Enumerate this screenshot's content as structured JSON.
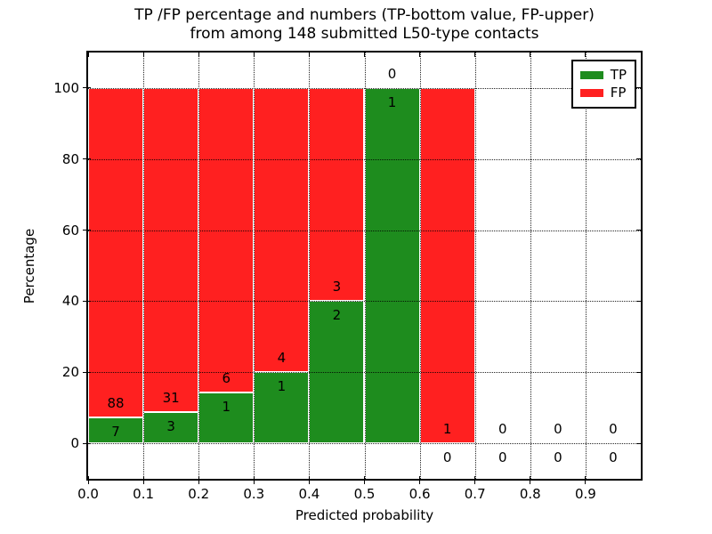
{
  "title": {
    "line1": "TP /FP percentage and numbers (TP-bottom value, FP-upper)",
    "line2": "from among 148 submitted L50-type contacts"
  },
  "axes": {
    "xlabel": "Predicted probability",
    "ylabel": "Percentage"
  },
  "legend": {
    "entries": [
      {
        "label": "TP",
        "color": "#1e8c1e"
      },
      {
        "label": "FP",
        "color": "#ff2020"
      }
    ]
  },
  "chart_data": {
    "type": "bar",
    "stacked": true,
    "percent_stacked": true,
    "title": "TP /FP percentage and numbers (TP-bottom value, FP-upper) from among 148 submitted L50-type contacts",
    "total_contacts": 148,
    "xlabel": "Predicted probability",
    "ylabel": "Percentage",
    "xlim": [
      0.0,
      1.0
    ],
    "ylim": [
      -10,
      110
    ],
    "grid": "dotted",
    "legend_position": "upper right",
    "x_ticks": [
      {
        "value": 0.0,
        "label": "0.0"
      },
      {
        "value": 0.1,
        "label": "0.1"
      },
      {
        "value": 0.2,
        "label": "0.2"
      },
      {
        "value": 0.3,
        "label": "0.3"
      },
      {
        "value": 0.4,
        "label": "0.4"
      },
      {
        "value": 0.5,
        "label": "0.5"
      },
      {
        "value": 0.6,
        "label": "0.6"
      },
      {
        "value": 0.7,
        "label": "0.7"
      },
      {
        "value": 0.8,
        "label": "0.8"
      },
      {
        "value": 0.9,
        "label": "0.9"
      }
    ],
    "y_ticks": [
      {
        "value": 0,
        "label": "0"
      },
      {
        "value": 20,
        "label": "20"
      },
      {
        "value": 40,
        "label": "40"
      },
      {
        "value": 60,
        "label": "60"
      },
      {
        "value": 80,
        "label": "80"
      },
      {
        "value": 100,
        "label": "100"
      }
    ],
    "bins": [
      {
        "x_start": 0.0,
        "x_end": 0.1,
        "tp": 7,
        "fp": 88,
        "tp_pct": 7.37,
        "fp_pct": 92.63
      },
      {
        "x_start": 0.1,
        "x_end": 0.2,
        "tp": 3,
        "fp": 31,
        "tp_pct": 8.82,
        "fp_pct": 91.18
      },
      {
        "x_start": 0.2,
        "x_end": 0.3,
        "tp": 1,
        "fp": 6,
        "tp_pct": 14.29,
        "fp_pct": 85.71
      },
      {
        "x_start": 0.3,
        "x_end": 0.4,
        "tp": 1,
        "fp": 4,
        "tp_pct": 20.0,
        "fp_pct": 80.0
      },
      {
        "x_start": 0.4,
        "x_end": 0.5,
        "tp": 2,
        "fp": 3,
        "tp_pct": 40.0,
        "fp_pct": 60.0
      },
      {
        "x_start": 0.5,
        "x_end": 0.6,
        "tp": 1,
        "fp": 0,
        "tp_pct": 100.0,
        "fp_pct": 0.0
      },
      {
        "x_start": 0.6,
        "x_end": 0.7,
        "tp": 0,
        "fp": 1,
        "tp_pct": 0.0,
        "fp_pct": 100.0
      },
      {
        "x_start": 0.7,
        "x_end": 0.8,
        "tp": 0,
        "fp": 0,
        "tp_pct": 0.0,
        "fp_pct": 0.0
      },
      {
        "x_start": 0.8,
        "x_end": 0.9,
        "tp": 0,
        "fp": 0,
        "tp_pct": 0.0,
        "fp_pct": 0.0
      },
      {
        "x_start": 0.9,
        "x_end": 1.0,
        "tp": 0,
        "fp": 0,
        "tp_pct": 0.0,
        "fp_pct": 0.0
      }
    ],
    "colors": {
      "tp": "#1e8c1e",
      "fp": "#ff2020",
      "grid": "#000000",
      "background": "#ffffff"
    }
  }
}
